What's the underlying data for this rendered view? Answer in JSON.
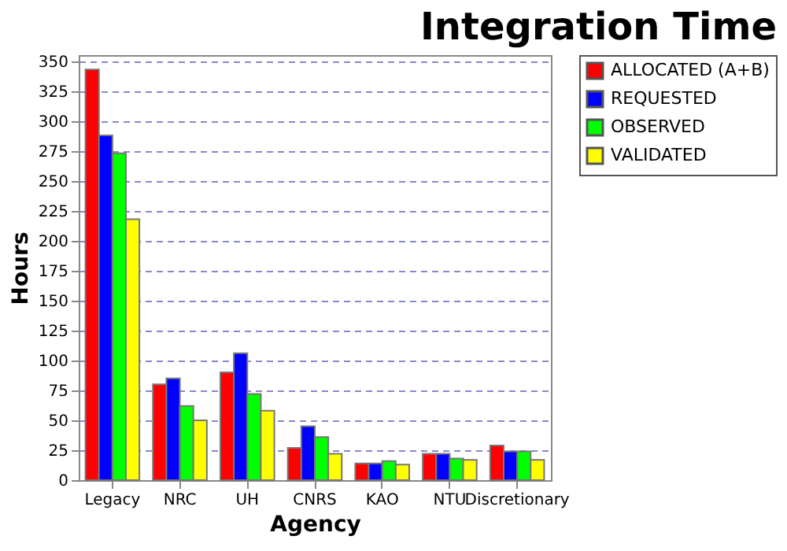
{
  "chart_data": {
    "type": "bar",
    "title": "Integration Time",
    "xlabel": "Agency",
    "ylabel": "Hours",
    "categories": [
      "Legacy",
      "NRC",
      "UH",
      "CNRS",
      "KAO",
      "NTU",
      "Discretionary"
    ],
    "series": [
      {
        "name": "ALLOCATED (A+B)",
        "color": "#ff0000",
        "values": [
          343,
          80,
          90,
          27,
          14,
          22,
          29
        ]
      },
      {
        "name": "REQUESTED",
        "color": "#0000ff",
        "values": [
          288,
          85,
          106,
          45,
          14,
          22,
          24
        ]
      },
      {
        "name": "OBSERVED",
        "color": "#00ff00",
        "values": [
          273,
          62,
          72,
          36,
          16,
          18,
          24
        ]
      },
      {
        "name": "VALIDATED",
        "color": "#ffff00",
        "values": [
          218,
          50,
          58,
          22,
          13,
          17,
          17
        ]
      }
    ],
    "ylim": [
      0,
      355
    ],
    "yticks": [
      0,
      25,
      50,
      75,
      100,
      125,
      150,
      175,
      200,
      225,
      250,
      275,
      300,
      325,
      350
    ],
    "grid": "y",
    "legend": "right"
  }
}
